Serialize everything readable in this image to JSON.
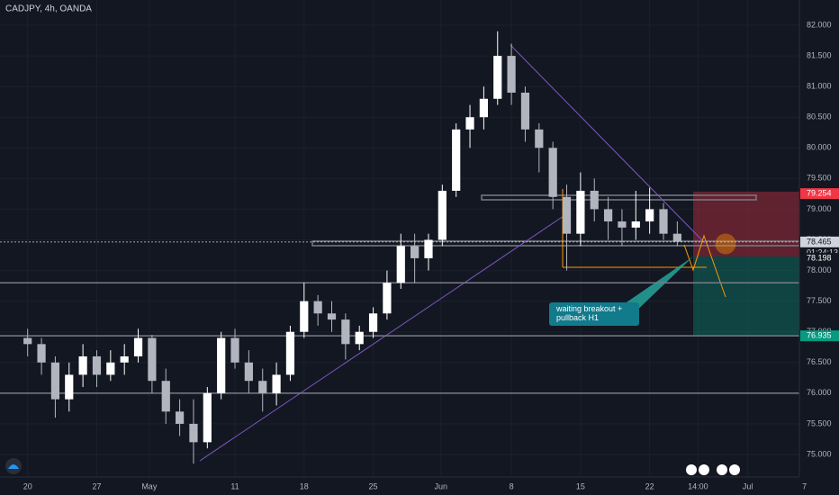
{
  "chart_data": {
    "type": "candlestick",
    "title": "CADJPY, 4h, OANDA",
    "annotation": "waiting breakout +\npullback H1",
    "x": [
      0,
      1,
      2,
      3,
      4,
      5,
      6,
      7,
      8,
      9,
      10,
      11,
      12,
      13,
      14,
      15,
      16,
      17,
      18,
      19,
      20,
      21,
      22,
      23,
      24,
      25,
      26,
      27,
      28,
      29,
      30,
      31,
      32,
      33,
      34,
      35,
      36,
      37,
      38,
      39,
      40,
      41,
      42,
      43,
      44,
      45,
      46,
      47
    ],
    "open": [
      76.9,
      76.8,
      76.5,
      75.9,
      76.3,
      76.6,
      76.3,
      76.5,
      76.6,
      76.9,
      76.2,
      75.7,
      75.5,
      75.2,
      76.0,
      76.9,
      76.5,
      76.2,
      76.0,
      76.3,
      77.0,
      77.5,
      77.3,
      77.2,
      76.8,
      77.0,
      77.3,
      77.8,
      78.4,
      78.2,
      78.5,
      79.3,
      80.3,
      80.5,
      80.8,
      81.5,
      80.9,
      80.3,
      80.0,
      79.2,
      78.6,
      79.3,
      79.0,
      78.8,
      78.7,
      78.8,
      79.0,
      78.6
    ],
    "high": [
      77.05,
      76.9,
      76.6,
      76.5,
      76.8,
      76.7,
      76.7,
      76.8,
      77.05,
      76.95,
      76.4,
      75.9,
      75.9,
      76.1,
      77.0,
      77.05,
      76.7,
      76.4,
      76.5,
      77.1,
      77.8,
      77.6,
      77.5,
      77.3,
      77.1,
      77.4,
      78.0,
      78.6,
      78.6,
      78.6,
      79.4,
      80.4,
      80.7,
      81.0,
      81.9,
      81.7,
      81.0,
      80.4,
      80.1,
      79.4,
      79.6,
      79.5,
      79.2,
      79.0,
      79.3,
      79.35,
      79.1,
      78.8
    ],
    "low": [
      76.6,
      76.3,
      75.6,
      75.7,
      76.1,
      76.1,
      76.2,
      76.3,
      76.5,
      76.0,
      75.5,
      75.3,
      74.85,
      75.1,
      75.9,
      76.4,
      76.0,
      75.7,
      75.8,
      76.2,
      76.9,
      77.1,
      77.0,
      76.55,
      76.7,
      76.9,
      77.2,
      77.7,
      77.8,
      78.0,
      78.4,
      79.2,
      80.0,
      80.3,
      80.7,
      80.7,
      80.1,
      79.6,
      79.0,
      78.0,
      78.4,
      78.8,
      78.5,
      78.4,
      78.5,
      78.6,
      78.5,
      78.4
    ],
    "close": [
      76.8,
      76.5,
      75.9,
      76.3,
      76.6,
      76.3,
      76.5,
      76.6,
      76.9,
      76.2,
      75.7,
      75.5,
      75.2,
      76.0,
      76.9,
      76.5,
      76.2,
      76.0,
      76.3,
      77.0,
      77.5,
      77.3,
      77.2,
      76.8,
      77.0,
      77.3,
      77.8,
      78.4,
      78.2,
      78.5,
      79.3,
      80.3,
      80.5,
      80.8,
      81.5,
      80.9,
      80.3,
      80.0,
      79.2,
      78.6,
      79.3,
      79.0,
      78.8,
      78.7,
      78.8,
      79.0,
      78.6,
      78.47
    ],
    "up_color": "#ffffff",
    "down_color": "#b2b5be",
    "xlim": [
      -2,
      58.7
    ],
    "xticks": [
      {
        "value": 0,
        "label": "20"
      },
      {
        "value": 5,
        "label": "27"
      },
      {
        "value": 8.8,
        "label": "May"
      },
      {
        "value": 15,
        "label": "11"
      },
      {
        "value": 20,
        "label": "18"
      },
      {
        "value": 25,
        "label": "25"
      },
      {
        "value": 29.9,
        "label": "Jun"
      },
      {
        "value": 35,
        "label": "8"
      },
      {
        "value": 40,
        "label": "15"
      },
      {
        "value": 45,
        "label": "22"
      },
      {
        "value": 48.5,
        "label": "14:00"
      },
      {
        "value": 52.1,
        "label": "Jul"
      },
      {
        "value": 56.2,
        "label": "7"
      }
    ],
    "ylim": [
      74.633,
      82.411
    ],
    "yticks": [
      {
        "value": 82,
        "label": "82.000"
      },
      {
        "value": 81.5,
        "label": "81.500"
      },
      {
        "value": 81,
        "label": "81.000"
      },
      {
        "value": 80.5,
        "label": "80.500"
      },
      {
        "value": 80,
        "label": "80.000"
      },
      {
        "value": 79.5,
        "label": "79.500"
      },
      {
        "value": 79,
        "label": "79.000"
      },
      {
        "value": 78.5,
        "label": "78.500"
      },
      {
        "value": 78,
        "label": "78.000"
      },
      {
        "value": 77.5,
        "label": "77.500"
      },
      {
        "value": 77,
        "label": "77.000"
      },
      {
        "value": 76.5,
        "label": "76.500"
      },
      {
        "value": 76,
        "label": "76.000"
      },
      {
        "value": 75.5,
        "label": "75.500"
      },
      {
        "value": 75,
        "label": "75.000"
      }
    ],
    "price_tags": [
      79.254,
      78.465,
      78.198,
      76.935
    ],
    "price_tag_colors": [
      "#f23645",
      "#d1d4dc",
      "#131722",
      "#089981"
    ],
    "countdown": "01:24:13",
    "levels": [
      77.8,
      76.935,
      76.0
    ]
  }
}
